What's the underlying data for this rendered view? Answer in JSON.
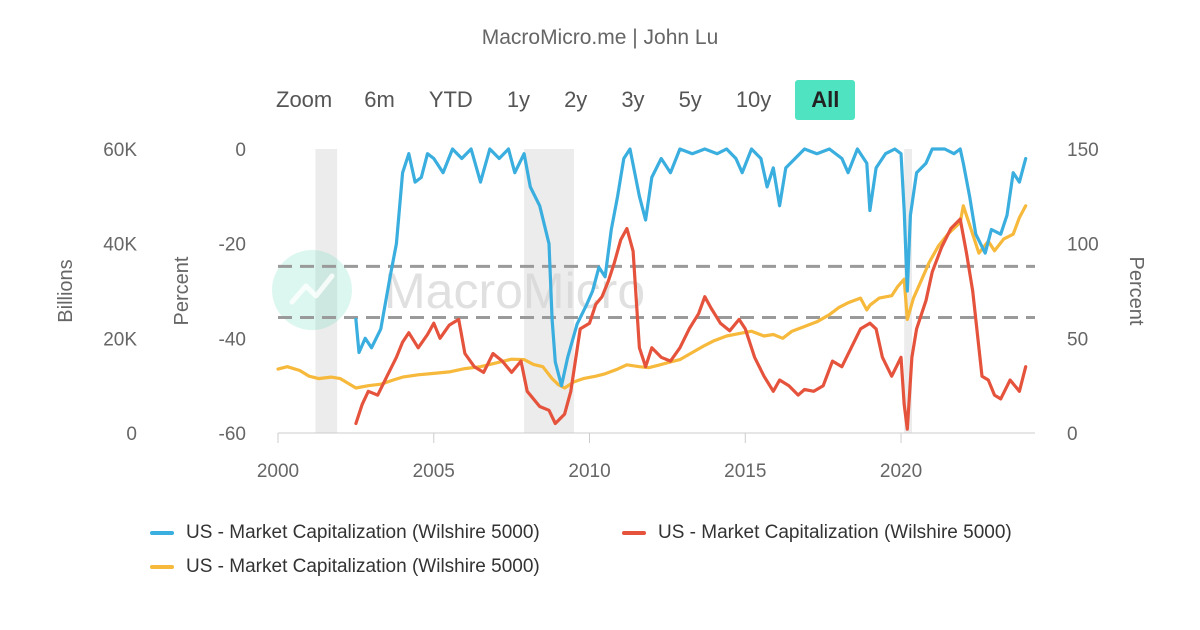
{
  "credit": "MacroMicro.me | John Lu",
  "watermark": "MacroMicro",
  "zoom": {
    "label": "Zoom",
    "buttons": [
      "6m",
      "YTD",
      "1y",
      "2y",
      "3y",
      "5y",
      "10y",
      "All"
    ],
    "active": "All"
  },
  "colors": {
    "blue": "#3aaede",
    "red": "#e5533d",
    "orange": "#f6b93b",
    "recession": "#ececec",
    "threshold": "#9a9a9a",
    "axis": "#cccccc"
  },
  "legend": [
    {
      "label": "US - Market Capitalization (Wilshire 5000)",
      "color": "#3aaede"
    },
    {
      "label": "US - Market Capitalization (Wilshire 5000)",
      "color": "#e5533d"
    },
    {
      "label": "US - Market Capitalization (Wilshire 5000)",
      "color": "#f6b93b"
    }
  ],
  "chart_data": {
    "type": "line",
    "title": "",
    "x_axis": {
      "range": [
        2000,
        2024.3
      ],
      "ticks": [
        "2000",
        "2005",
        "2010",
        "2015",
        "2020"
      ],
      "tick_values": [
        2000,
        2005,
        2010,
        2015,
        2020
      ]
    },
    "y_axes": [
      {
        "id": "billions",
        "label": "Billions",
        "side": "left-outer",
        "range": [
          0,
          60000
        ],
        "ticks": [
          "0",
          "20K",
          "40K",
          "60K"
        ],
        "tick_values": [
          0,
          20000,
          40000,
          60000
        ]
      },
      {
        "id": "percent_left",
        "label": "Percent",
        "side": "left-inner",
        "range": [
          -60,
          0
        ],
        "ticks": [
          "-60",
          "-40",
          "-20",
          "0"
        ],
        "tick_values": [
          -60,
          -40,
          -20,
          0
        ]
      },
      {
        "id": "percent_right",
        "label": "Percent",
        "side": "right",
        "range": [
          0,
          150
        ],
        "ticks": [
          "0",
          "50",
          "100",
          "150"
        ],
        "tick_values": [
          0,
          50,
          100,
          150
        ]
      }
    ],
    "recession_bands": [
      [
        2001.2,
        2001.9
      ],
      [
        2007.9,
        2009.5
      ],
      [
        2020.1,
        2020.35
      ]
    ],
    "threshold_lines": [
      {
        "axis": "percent_right",
        "value": 88
      },
      {
        "axis": "percent_right",
        "value": 61
      }
    ],
    "series": [
      {
        "name": "US - Market Capitalization (Wilshire 5000)",
        "axis": "percent_left",
        "color": "#3aaede",
        "points": [
          [
            2002.5,
            -36
          ],
          [
            2002.6,
            -43
          ],
          [
            2002.8,
            -40
          ],
          [
            2003.0,
            -42
          ],
          [
            2003.3,
            -38
          ],
          [
            2003.6,
            -27
          ],
          [
            2003.8,
            -20
          ],
          [
            2004.0,
            -5
          ],
          [
            2004.2,
            -1
          ],
          [
            2004.4,
            -7
          ],
          [
            2004.6,
            -6
          ],
          [
            2004.8,
            -1
          ],
          [
            2005.0,
            -2
          ],
          [
            2005.3,
            -5
          ],
          [
            2005.6,
            0
          ],
          [
            2005.9,
            -2
          ],
          [
            2006.2,
            0
          ],
          [
            2006.5,
            -7
          ],
          [
            2006.8,
            0
          ],
          [
            2007.1,
            -2
          ],
          [
            2007.4,
            0
          ],
          [
            2007.6,
            -5
          ],
          [
            2007.9,
            -1
          ],
          [
            2008.1,
            -8
          ],
          [
            2008.4,
            -12
          ],
          [
            2008.7,
            -20
          ],
          [
            2008.8,
            -36
          ],
          [
            2008.9,
            -45
          ],
          [
            2009.1,
            -50
          ],
          [
            2009.3,
            -44
          ],
          [
            2009.6,
            -37
          ],
          [
            2009.9,
            -33
          ],
          [
            2010.1,
            -30
          ],
          [
            2010.3,
            -25
          ],
          [
            2010.5,
            -27
          ],
          [
            2010.7,
            -17
          ],
          [
            2010.9,
            -10
          ],
          [
            2011.1,
            -2
          ],
          [
            2011.3,
            0
          ],
          [
            2011.6,
            -10
          ],
          [
            2011.8,
            -15
          ],
          [
            2012.0,
            -6
          ],
          [
            2012.3,
            -2
          ],
          [
            2012.6,
            -5
          ],
          [
            2012.9,
            0
          ],
          [
            2013.3,
            -1
          ],
          [
            2013.7,
            0
          ],
          [
            2014.1,
            -1
          ],
          [
            2014.4,
            0
          ],
          [
            2014.7,
            -2
          ],
          [
            2014.9,
            -5
          ],
          [
            2015.2,
            0
          ],
          [
            2015.5,
            -2
          ],
          [
            2015.7,
            -8
          ],
          [
            2015.9,
            -4
          ],
          [
            2016.1,
            -12
          ],
          [
            2016.3,
            -4
          ],
          [
            2016.6,
            -2
          ],
          [
            2016.9,
            0
          ],
          [
            2017.3,
            -1
          ],
          [
            2017.7,
            0
          ],
          [
            2018.1,
            -2
          ],
          [
            2018.3,
            -5
          ],
          [
            2018.6,
            0
          ],
          [
            2018.9,
            -3
          ],
          [
            2019.0,
            -13
          ],
          [
            2019.2,
            -4
          ],
          [
            2019.5,
            -1
          ],
          [
            2019.8,
            0
          ],
          [
            2020.0,
            -1
          ],
          [
            2020.1,
            -13
          ],
          [
            2020.2,
            -30
          ],
          [
            2020.3,
            -14
          ],
          [
            2020.5,
            -5
          ],
          [
            2020.8,
            -3
          ],
          [
            2021.0,
            0
          ],
          [
            2021.4,
            0
          ],
          [
            2021.7,
            -1
          ],
          [
            2021.9,
            0
          ],
          [
            2022.0,
            -3
          ],
          [
            2022.2,
            -10
          ],
          [
            2022.4,
            -18
          ],
          [
            2022.7,
            -22
          ],
          [
            2022.9,
            -17
          ],
          [
            2023.2,
            -18
          ],
          [
            2023.4,
            -14
          ],
          [
            2023.6,
            -5
          ],
          [
            2023.8,
            -7
          ],
          [
            2024.0,
            -2
          ]
        ]
      },
      {
        "name": "US - Market Capitalization (Wilshire 5000)",
        "axis": "percent_right",
        "color": "#e5533d",
        "points": [
          [
            2002.5,
            5
          ],
          [
            2002.7,
            15
          ],
          [
            2002.9,
            22
          ],
          [
            2003.2,
            20
          ],
          [
            2003.5,
            30
          ],
          [
            2003.8,
            40
          ],
          [
            2004.0,
            48
          ],
          [
            2004.2,
            53
          ],
          [
            2004.5,
            45
          ],
          [
            2004.8,
            52
          ],
          [
            2005.0,
            58
          ],
          [
            2005.2,
            50
          ],
          [
            2005.5,
            57
          ],
          [
            2005.8,
            60
          ],
          [
            2006.0,
            42
          ],
          [
            2006.3,
            35
          ],
          [
            2006.6,
            32
          ],
          [
            2006.9,
            42
          ],
          [
            2007.2,
            38
          ],
          [
            2007.5,
            32
          ],
          [
            2007.8,
            38
          ],
          [
            2008.0,
            22
          ],
          [
            2008.4,
            14
          ],
          [
            2008.7,
            12
          ],
          [
            2008.9,
            5
          ],
          [
            2009.2,
            10
          ],
          [
            2009.4,
            22
          ],
          [
            2009.7,
            55
          ],
          [
            2010.0,
            58
          ],
          [
            2010.2,
            68
          ],
          [
            2010.4,
            72
          ],
          [
            2010.6,
            80
          ],
          [
            2010.8,
            90
          ],
          [
            2011.0,
            102
          ],
          [
            2011.2,
            108
          ],
          [
            2011.4,
            96
          ],
          [
            2011.6,
            45
          ],
          [
            2011.8,
            35
          ],
          [
            2012.0,
            45
          ],
          [
            2012.3,
            40
          ],
          [
            2012.6,
            38
          ],
          [
            2012.9,
            45
          ],
          [
            2013.2,
            55
          ],
          [
            2013.5,
            63
          ],
          [
            2013.7,
            72
          ],
          [
            2013.9,
            66
          ],
          [
            2014.2,
            58
          ],
          [
            2014.5,
            54
          ],
          [
            2014.8,
            60
          ],
          [
            2015.0,
            55
          ],
          [
            2015.3,
            40
          ],
          [
            2015.6,
            30
          ],
          [
            2015.9,
            22
          ],
          [
            2016.1,
            28
          ],
          [
            2016.4,
            25
          ],
          [
            2016.7,
            20
          ],
          [
            2016.9,
            23
          ],
          [
            2017.2,
            22
          ],
          [
            2017.5,
            25
          ],
          [
            2017.8,
            38
          ],
          [
            2018.1,
            35
          ],
          [
            2018.4,
            45
          ],
          [
            2018.7,
            55
          ],
          [
            2019.0,
            58
          ],
          [
            2019.2,
            55
          ],
          [
            2019.4,
            40
          ],
          [
            2019.7,
            30
          ],
          [
            2020.0,
            40
          ],
          [
            2020.1,
            15
          ],
          [
            2020.2,
            2
          ],
          [
            2020.35,
            40
          ],
          [
            2020.5,
            55
          ],
          [
            2020.8,
            70
          ],
          [
            2021.0,
            85
          ],
          [
            2021.3,
            98
          ],
          [
            2021.6,
            108
          ],
          [
            2021.9,
            113
          ],
          [
            2022.1,
            95
          ],
          [
            2022.3,
            75
          ],
          [
            2022.6,
            30
          ],
          [
            2022.8,
            28
          ],
          [
            2023.0,
            20
          ],
          [
            2023.2,
            18
          ],
          [
            2023.5,
            28
          ],
          [
            2023.8,
            22
          ],
          [
            2024.0,
            35
          ]
        ]
      },
      {
        "name": "US - Market Capitalization (Wilshire 5000)",
        "axis": "billions",
        "color": "#f6b93b",
        "points": [
          [
            2000.0,
            13500
          ],
          [
            2000.3,
            14000
          ],
          [
            2000.7,
            13200
          ],
          [
            2001.0,
            12000
          ],
          [
            2001.3,
            11500
          ],
          [
            2001.7,
            11800
          ],
          [
            2002.0,
            11500
          ],
          [
            2002.5,
            9500
          ],
          [
            2002.9,
            10000
          ],
          [
            2003.3,
            10300
          ],
          [
            2003.7,
            11200
          ],
          [
            2004.0,
            11800
          ],
          [
            2004.5,
            12300
          ],
          [
            2005.0,
            12600
          ],
          [
            2005.5,
            12900
          ],
          [
            2006.0,
            13600
          ],
          [
            2006.5,
            14000
          ],
          [
            2007.0,
            14800
          ],
          [
            2007.5,
            15600
          ],
          [
            2007.9,
            15500
          ],
          [
            2008.2,
            14500
          ],
          [
            2008.5,
            14000
          ],
          [
            2008.8,
            11500
          ],
          [
            2009.0,
            10200
          ],
          [
            2009.2,
            9500
          ],
          [
            2009.5,
            10800
          ],
          [
            2009.8,
            11500
          ],
          [
            2010.2,
            12000
          ],
          [
            2010.5,
            12500
          ],
          [
            2010.9,
            13500
          ],
          [
            2011.2,
            14400
          ],
          [
            2011.6,
            14000
          ],
          [
            2011.9,
            13800
          ],
          [
            2012.2,
            14300
          ],
          [
            2012.6,
            15000
          ],
          [
            2012.9,
            15500
          ],
          [
            2013.3,
            17000
          ],
          [
            2013.7,
            18500
          ],
          [
            2014.0,
            19500
          ],
          [
            2014.4,
            20500
          ],
          [
            2014.8,
            21000
          ],
          [
            2015.2,
            21500
          ],
          [
            2015.6,
            20500
          ],
          [
            2015.9,
            20800
          ],
          [
            2016.2,
            20000
          ],
          [
            2016.5,
            21500
          ],
          [
            2016.9,
            22500
          ],
          [
            2017.3,
            23500
          ],
          [
            2017.7,
            25000
          ],
          [
            2018.0,
            26500
          ],
          [
            2018.3,
            27500
          ],
          [
            2018.7,
            28500
          ],
          [
            2018.9,
            26000
          ],
          [
            2019.0,
            27000
          ],
          [
            2019.3,
            28500
          ],
          [
            2019.7,
            29000
          ],
          [
            2019.9,
            31000
          ],
          [
            2020.1,
            32500
          ],
          [
            2020.2,
            24000
          ],
          [
            2020.4,
            28500
          ],
          [
            2020.7,
            33000
          ],
          [
            2020.9,
            36000
          ],
          [
            2021.2,
            39500
          ],
          [
            2021.5,
            42000
          ],
          [
            2021.9,
            44500
          ],
          [
            2022.0,
            48000
          ],
          [
            2022.3,
            42000
          ],
          [
            2022.5,
            38000
          ],
          [
            2022.8,
            40500
          ],
          [
            2023.0,
            38500
          ],
          [
            2023.3,
            41000
          ],
          [
            2023.6,
            42000
          ],
          [
            2023.8,
            45500
          ],
          [
            2024.0,
            48000
          ]
        ]
      }
    ]
  }
}
